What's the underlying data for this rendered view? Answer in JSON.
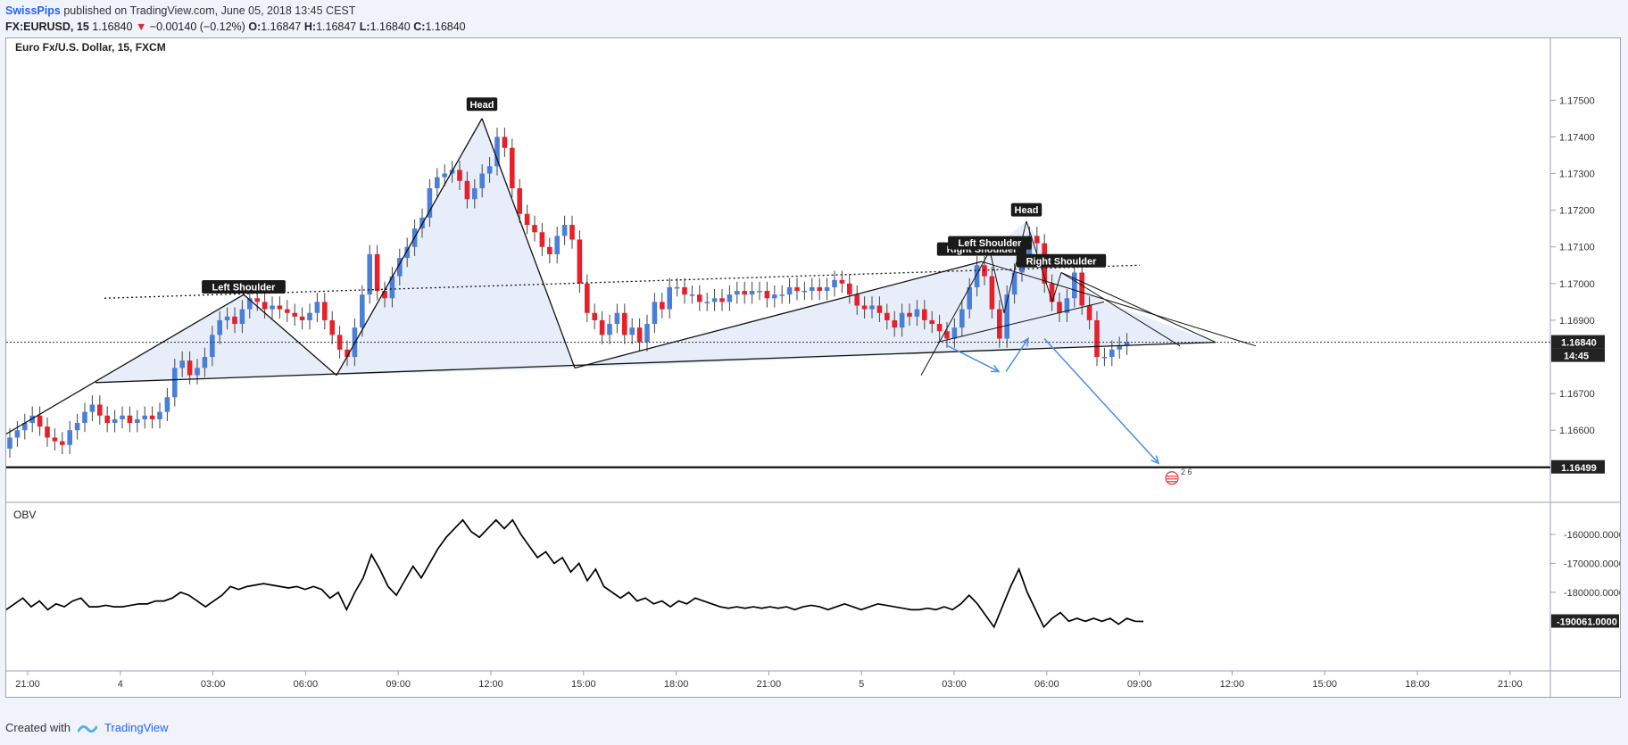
{
  "header": {
    "author": "SwissPips",
    "published": "published on TradingView.com, June 05, 2018 13:45 CEST",
    "symbol": "FX:EURUSD, 15",
    "last": "1.16840",
    "change": "−0.00140 (−0.12%)",
    "o_label": "O:",
    "o": "1.16847",
    "h_label": "H:",
    "h": "1.16847",
    "l_label": "L:",
    "l": "1.16840",
    "c_label": "C:",
    "c": "1.16840"
  },
  "footer": {
    "created_with": "Created with",
    "brand": "TradingView"
  },
  "colors": {
    "up": "#4a7fd8",
    "down": "#e8202a",
    "pattern_fill": "#e8eef9",
    "arrow": "#4a90e2",
    "obv_line": "#000000"
  },
  "chart_data": [
    {
      "type": "candlestick",
      "title": "Euro Fx/U.S. Dollar, 15, FXCM",
      "x_ticks": [
        "21:00",
        "4",
        "03:00",
        "06:00",
        "09:00",
        "12:00",
        "15:00",
        "18:00",
        "21:00",
        "5",
        "03:00",
        "06:00",
        "09:00",
        "12:00",
        "15:00",
        "18:00",
        "21:00"
      ],
      "y_ticks": [
        "1.17500",
        "1.17400",
        "1.17300",
        "1.17200",
        "1.17100",
        "1.17000",
        "1.16900",
        "1.16700",
        "1.16600"
      ],
      "ylim": [
        1.1644,
        1.1762
      ],
      "current_price": "1.16840",
      "countdown": "14:45",
      "support_level": "1.16499",
      "support_value": 1.16499,
      "annotations": [
        "Left Shoulder",
        "Head",
        "Left Shoulder",
        "Right Shoulder",
        "Head",
        "Right Shoulder"
      ],
      "event_badge": "2 6",
      "candles_close": [
        1.1658,
        1.166,
        1.1662,
        1.1664,
        1.1661,
        1.1658,
        1.1657,
        1.1656,
        1.166,
        1.1662,
        1.1665,
        1.1667,
        1.1664,
        1.1662,
        1.1663,
        1.1664,
        1.1662,
        1.1663,
        1.1664,
        1.1663,
        1.1665,
        1.1669,
        1.1677,
        1.1679,
        1.1675,
        1.1677,
        1.168,
        1.1686,
        1.169,
        1.1691,
        1.1689,
        1.1693,
        1.1696,
        1.1695,
        1.1693,
        1.1694,
        1.1693,
        1.1692,
        1.1691,
        1.169,
        1.1692,
        1.1695,
        1.169,
        1.1686,
        1.1682,
        1.168,
        1.1688,
        1.1697,
        1.1708,
        1.1698,
        1.1696,
        1.1702,
        1.1707,
        1.171,
        1.1715,
        1.1718,
        1.1726,
        1.1729,
        1.173,
        1.1731,
        1.1728,
        1.1723,
        1.1726,
        1.173,
        1.1732,
        1.174,
        1.1737,
        1.1726,
        1.1719,
        1.1716,
        1.1714,
        1.171,
        1.1708,
        1.1713,
        1.1716,
        1.1712,
        1.17,
        1.1692,
        1.169,
        1.1686,
        1.1689,
        1.1692,
        1.1686,
        1.1688,
        1.1684,
        1.1689,
        1.1695,
        1.1693,
        1.1699,
        1.1699,
        1.1697,
        1.1697,
        1.1695,
        1.1695,
        1.1696,
        1.1695,
        1.1697,
        1.1698,
        1.1697,
        1.1698,
        1.1698,
        1.1696,
        1.1697,
        1.1697,
        1.1699,
        1.1698,
        1.1698,
        1.1699,
        1.1698,
        1.1699,
        1.1701,
        1.17,
        1.1697,
        1.1694,
        1.1693,
        1.1694,
        1.1692,
        1.169,
        1.1688,
        1.1692,
        1.1691,
        1.1693,
        1.169,
        1.1689,
        1.1687,
        1.1685,
        1.1688,
        1.1693,
        1.1699,
        1.1705,
        1.1702,
        1.1693,
        1.1685,
        1.1697,
        1.1703,
        1.1707,
        1.1713,
        1.1711,
        1.17,
        1.1695,
        1.1692,
        1.1696,
        1.1703,
        1.1694,
        1.169,
        1.168,
        1.168,
        1.1682,
        1.1683,
        1.1684
      ]
    },
    {
      "type": "line",
      "title": "OBV",
      "y_ticks": [
        "-160000.0000",
        "-170000.0000",
        "-180000.0000"
      ],
      "current_value": "-190061.0000",
      "ylim": [
        -205000,
        -152000
      ],
      "values": [
        -186000,
        -184000,
        -182000,
        -185000,
        -183000,
        -186000,
        -184000,
        -185000,
        -183000,
        -182000,
        -185000,
        -185000,
        -184500,
        -185000,
        -185000,
        -184500,
        -184000,
        -184000,
        -183000,
        -183000,
        -182000,
        -180000,
        -181000,
        -183000,
        -185000,
        -183000,
        -181000,
        -178000,
        -179000,
        -178000,
        -177500,
        -177000,
        -177500,
        -178000,
        -178500,
        -178000,
        -179000,
        -178000,
        -179000,
        -182000,
        -180000,
        -186000,
        -180000,
        -175000,
        -167000,
        -172000,
        -178000,
        -181000,
        -176000,
        -171000,
        -175000,
        -170000,
        -165000,
        -161000,
        -158000,
        -155000,
        -159000,
        -161000,
        -158000,
        -155000,
        -158000,
        -155000,
        -160000,
        -164000,
        -168000,
        -166000,
        -170000,
        -168000,
        -173000,
        -170000,
        -176000,
        -172000,
        -178000,
        -180000,
        -182000,
        -180000,
        -183000,
        -182000,
        -184000,
        -183000,
        -185000,
        -183000,
        -184000,
        -182000,
        -183000,
        -184000,
        -185000,
        -185500,
        -185000,
        -185500,
        -185000,
        -185500,
        -185000,
        -185500,
        -185000,
        -186000,
        -185000,
        -184500,
        -185000,
        -186000,
        -185000,
        -184000,
        -185000,
        -186000,
        -185000,
        -184000,
        -184500,
        -185000,
        -185500,
        -186000,
        -186000,
        -185500,
        -186000,
        -185000,
        -186000,
        -184000,
        -181000,
        -184000,
        -188000,
        -192000,
        -185000,
        -178000,
        -172000,
        -180000,
        -186000,
        -192000,
        -189000,
        -187000,
        -190000,
        -189000,
        -190000,
        -189000,
        -190000,
        -189000,
        -191000,
        -189000,
        -190000,
        -190061
      ]
    }
  ]
}
